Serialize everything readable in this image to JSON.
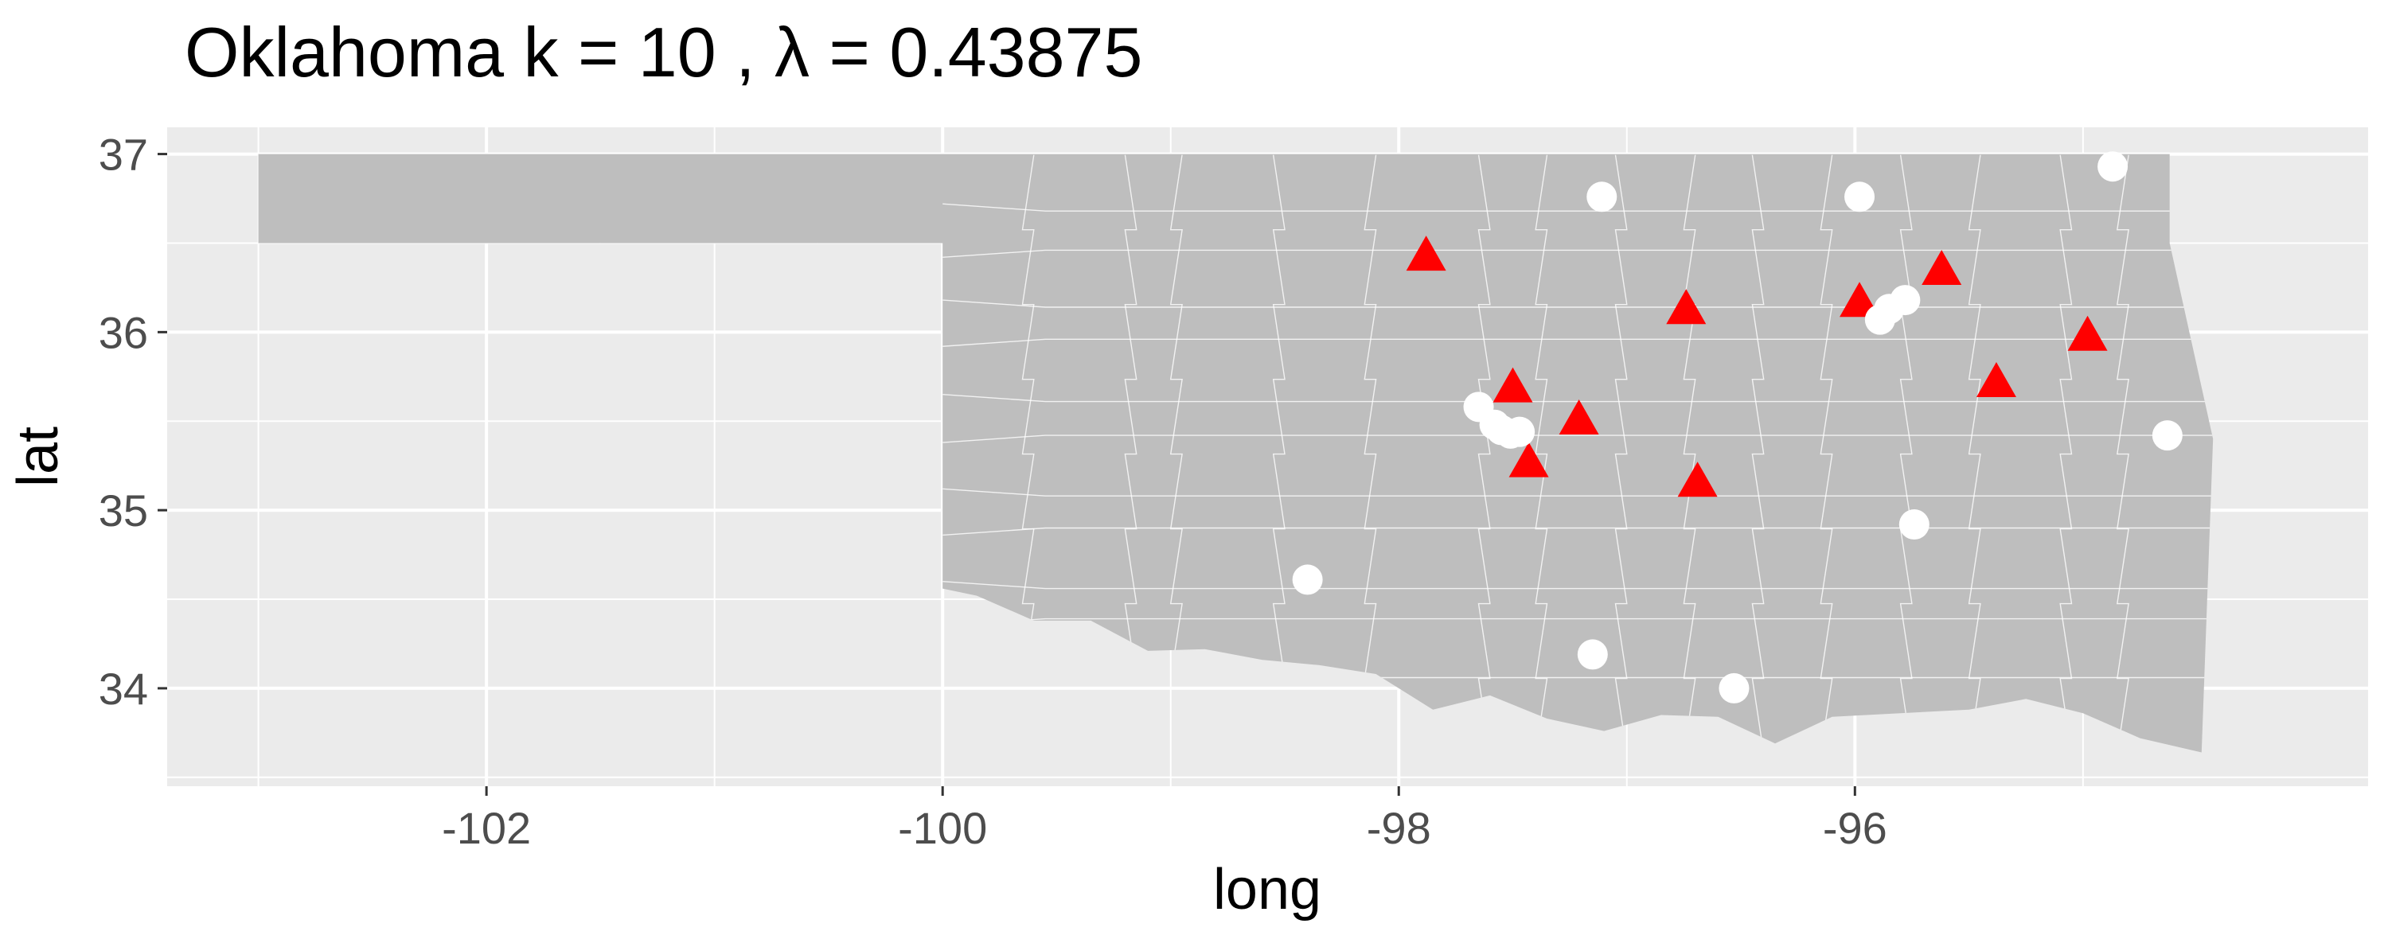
{
  "chart_data": {
    "type": "scatter",
    "title": "Oklahoma  k =  10 ,  λ  =  0.43875",
    "xlabel": "long",
    "ylabel": "lat",
    "xlim": [
      -103.4,
      -93.75
    ],
    "ylim": [
      33.45,
      37.15
    ],
    "x_ticks": [
      -102,
      -100,
      -98,
      -96
    ],
    "y_ticks": [
      34,
      35,
      36,
      37
    ],
    "x_tick_labels": [
      "-102",
      "-100",
      "-98",
      "-96"
    ],
    "y_tick_labels": [
      "34",
      "35",
      "36",
      "37"
    ],
    "grid": true,
    "legend": "none",
    "colors": {
      "panel_background": "#ebebeb",
      "gridline": "#ffffff",
      "state_fill": "#bebebe",
      "boundary": "#ffffff",
      "triangle_marker": "#ff0000",
      "circle_marker": "#ffffff"
    },
    "series": [
      {
        "marker": "triangle",
        "color": "#ff0000",
        "points": [
          {
            "x": -97.88,
            "y": 36.42
          },
          {
            "x": -96.74,
            "y": 36.12
          },
          {
            "x": -95.98,
            "y": 36.16
          },
          {
            "x": -95.62,
            "y": 36.34
          },
          {
            "x": -94.98,
            "y": 35.97
          },
          {
            "x": -95.38,
            "y": 35.71
          },
          {
            "x": -97.5,
            "y": 35.68
          },
          {
            "x": -97.21,
            "y": 35.5
          },
          {
            "x": -97.43,
            "y": 35.26
          },
          {
            "x": -96.69,
            "y": 35.15
          }
        ]
      },
      {
        "marker": "circle",
        "color": "#ffffff",
        "points": [
          {
            "x": -97.11,
            "y": 36.76
          },
          {
            "x": -95.98,
            "y": 36.76
          },
          {
            "x": -94.87,
            "y": 36.93
          },
          {
            "x": -95.78,
            "y": 36.18
          },
          {
            "x": -95.85,
            "y": 36.13
          },
          {
            "x": -95.89,
            "y": 36.07
          },
          {
            "x": -97.65,
            "y": 35.58
          },
          {
            "x": -97.58,
            "y": 35.48
          },
          {
            "x": -97.55,
            "y": 35.45
          },
          {
            "x": -97.51,
            "y": 35.43
          },
          {
            "x": -97.47,
            "y": 35.44
          },
          {
            "x": -94.63,
            "y": 35.42
          },
          {
            "x": -95.74,
            "y": 34.92
          },
          {
            "x": -98.4,
            "y": 34.61
          },
          {
            "x": -97.15,
            "y": 34.19
          },
          {
            "x": -96.53,
            "y": 34.0
          }
        ]
      }
    ]
  }
}
